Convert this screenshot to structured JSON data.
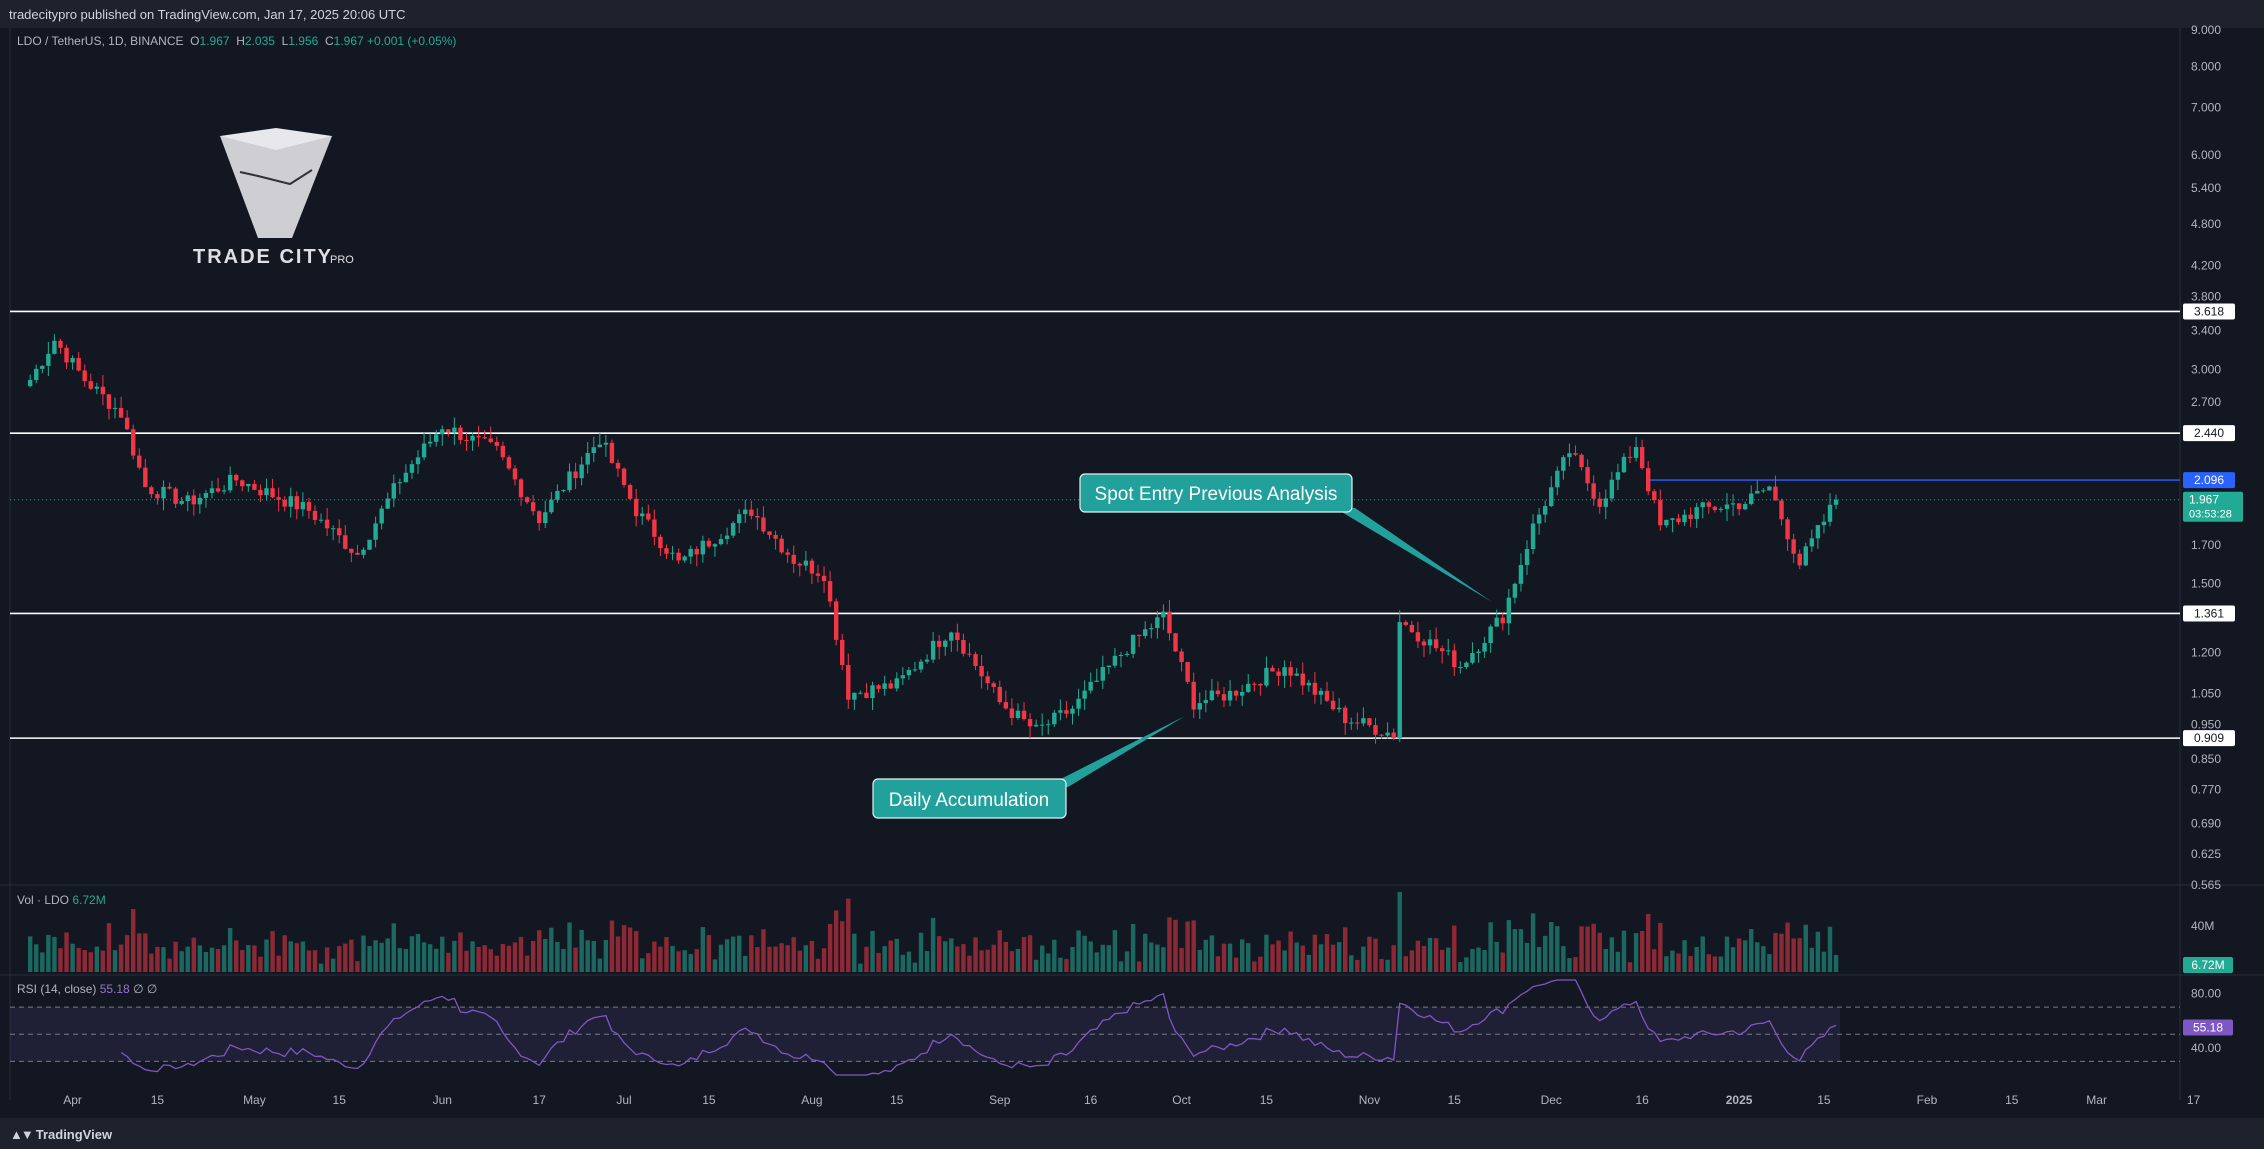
{
  "header": {
    "published_line": "tradecitypro published on TradingView.com, Jan 17, 2025 20:06 UTC"
  },
  "symbol_legend": {
    "pair": "LDO / TetherUS, 1D, BINANCE",
    "open_label": "O",
    "open": "1.967",
    "high_label": "H",
    "high": "2.035",
    "low_label": "L",
    "low": "1.956",
    "close_label": "C",
    "close": "1.967",
    "change": "+0.001 (+0.05%)"
  },
  "logo": {
    "brand": "TRADE CITY",
    "suffix": "PRO"
  },
  "volume_pane": {
    "label": "Vol · LDO",
    "value": "6.72M",
    "axis_tick": "40M",
    "badge": "6.72M"
  },
  "rsi_pane": {
    "label": "RSI (14, close)",
    "value": "55.18",
    "extra": "∅ ∅",
    "ticks": [
      "80.00",
      "40.00"
    ],
    "badge": "55.18",
    "upper_band": 70,
    "lower_band": 30
  },
  "footer": {
    "brand": "TradingView"
  },
  "colors": {
    "up": "#22ab94",
    "down": "#f23645",
    "background": "#131722",
    "annotation": "#21a09c",
    "rsi": "#7e57c2"
  },
  "chart_data": {
    "type": "candlestick",
    "scale": "log",
    "ylim": [
      0.565,
      9.0
    ],
    "price_ticks": [
      "9.000",
      "8.000",
      "7.000",
      "6.000",
      "5.400",
      "4.800",
      "4.200",
      "3.800",
      "3.400",
      "3.000",
      "2.700",
      "1.700",
      "1.500",
      "1.200",
      "1.050",
      "0.950",
      "0.850",
      "0.770",
      "0.690",
      "0.625",
      "0.565"
    ],
    "time_ticks": [
      "Apr",
      "15",
      "May",
      "15",
      "Jun",
      "17",
      "Jul",
      "15",
      "Aug",
      "15",
      "Sep",
      "16",
      "Oct",
      "15",
      "Nov",
      "15",
      "Dec",
      "16",
      "2025",
      "15",
      "Feb",
      "15",
      "Mar",
      "17"
    ],
    "levels": [
      {
        "price": 3.618,
        "label": "3.618"
      },
      {
        "price": 2.44,
        "label": "2.440"
      },
      {
        "price": 1.361,
        "label": "1.361"
      },
      {
        "price": 0.909,
        "label": "0.909"
      }
    ],
    "entry_line": {
      "price": 2.096,
      "label": "2.096"
    },
    "last_price": {
      "price": 1.967,
      "label": "1.967",
      "countdown": "03:53:28"
    },
    "annotations": [
      "Spot Entry Previous Analysis",
      "Daily Accumulation"
    ],
    "anchors": [
      {
        "date": "Mar 25",
        "close": 2.9
      },
      {
        "date": "Mar 29",
        "close": 3.3
      },
      {
        "date": "Apr 3",
        "close": 2.9
      },
      {
        "date": "Apr 9",
        "close": 2.6
      },
      {
        "date": "Apr 13",
        "close": 2.05
      },
      {
        "date": "Apr 20",
        "close": 1.95
      },
      {
        "date": "Apr 28",
        "close": 2.1
      },
      {
        "date": "May 10",
        "close": 1.9
      },
      {
        "date": "May 18",
        "close": 1.65
      },
      {
        "date": "May 25",
        "close": 2.1
      },
      {
        "date": "Jun 1",
        "close": 2.5
      },
      {
        "date": "Jun 10",
        "close": 2.3
      },
      {
        "date": "Jun 17",
        "close": 1.85
      },
      {
        "date": "Jun 27",
        "close": 2.4
      },
      {
        "date": "Jul 3",
        "close": 1.9
      },
      {
        "date": "Jul 10",
        "close": 1.6
      },
      {
        "date": "Jul 22",
        "close": 1.9
      },
      {
        "date": "Jul 29",
        "close": 1.62
      },
      {
        "date": "Aug 3",
        "close": 1.55
      },
      {
        "date": "Aug 7",
        "close": 1.05
      },
      {
        "date": "Aug 15",
        "close": 1.08
      },
      {
        "date": "Aug 24",
        "close": 1.3
      },
      {
        "date": "Sep 1",
        "close": 1.02
      },
      {
        "date": "Sep 7",
        "close": 0.93
      },
      {
        "date": "Sep 13",
        "close": 1.0
      },
      {
        "date": "Sep 22",
        "close": 1.22
      },
      {
        "date": "Sep 28",
        "close": 1.35
      },
      {
        "date": "Oct 3",
        "close": 1.02
      },
      {
        "date": "Oct 9",
        "close": 1.05
      },
      {
        "date": "Oct 18",
        "close": 1.15
      },
      {
        "date": "Oct 28",
        "close": 0.97
      },
      {
        "date": "Nov 5",
        "close": 0.92
      },
      {
        "date": "Nov 6",
        "close": 1.33
      },
      {
        "date": "Nov 16",
        "close": 1.15
      },
      {
        "date": "Nov 23",
        "close": 1.35
      },
      {
        "date": "Nov 28",
        "close": 1.8
      },
      {
        "date": "Dec 4",
        "close": 2.3
      },
      {
        "date": "Dec 9",
        "close": 1.95
      },
      {
        "date": "Dec 15",
        "close": 2.35
      },
      {
        "date": "Dec 19",
        "close": 1.8
      },
      {
        "date": "Dec 25",
        "close": 1.9
      },
      {
        "date": "Jan 2",
        "close": 1.95
      },
      {
        "date": "Jan 6",
        "close": 2.05
      },
      {
        "date": "Jan 11",
        "close": 1.6
      },
      {
        "date": "Jan 17",
        "close": 1.967
      }
    ]
  }
}
